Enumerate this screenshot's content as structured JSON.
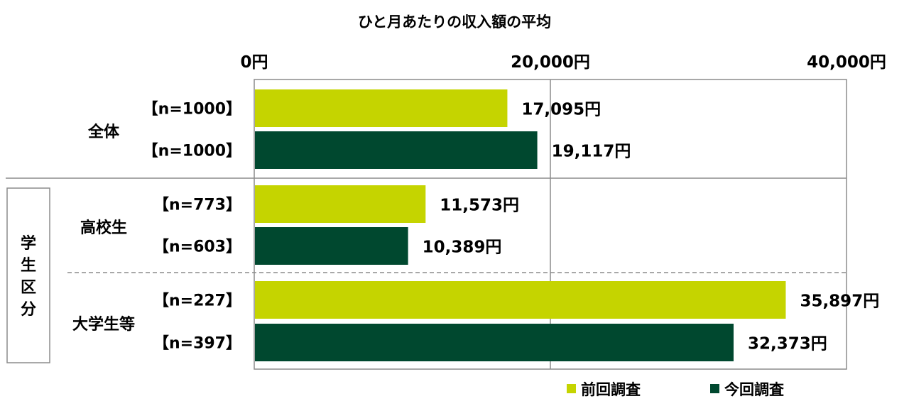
{
  "chart_data": {
    "type": "bar",
    "orientation": "horizontal",
    "title": "ひと月あたりの収入額の平均",
    "xlim": [
      0,
      40000
    ],
    "ticks": [
      0,
      20000,
      40000
    ],
    "tick_labels": [
      "0円",
      "20,000円",
      "40,000円"
    ],
    "grid": true,
    "legend_position": "bottom-right",
    "group_label": "学生区分",
    "series": [
      {
        "name": "前回調査",
        "color": "#c5d400"
      },
      {
        "name": "今回調査",
        "color": "#00482f"
      }
    ],
    "categories": [
      {
        "label": "全体",
        "bars": [
          {
            "n_label": "【n=1000】",
            "value": 17095,
            "value_label": "17,095円"
          },
          {
            "n_label": "【n=1000】",
            "value": 19117,
            "value_label": "19,117円"
          }
        ]
      },
      {
        "label": "高校生",
        "bars": [
          {
            "n_label": "【n=773】",
            "value": 11573,
            "value_label": "11,573円"
          },
          {
            "n_label": "【n=603】",
            "value": 10389,
            "value_label": "10,389円"
          }
        ]
      },
      {
        "label": "大学生等",
        "bars": [
          {
            "n_label": "【n=227】",
            "value": 35897,
            "value_label": "35,897円"
          },
          {
            "n_label": "【n=397】",
            "value": 32373,
            "value_label": "32,373円"
          }
        ]
      }
    ]
  }
}
